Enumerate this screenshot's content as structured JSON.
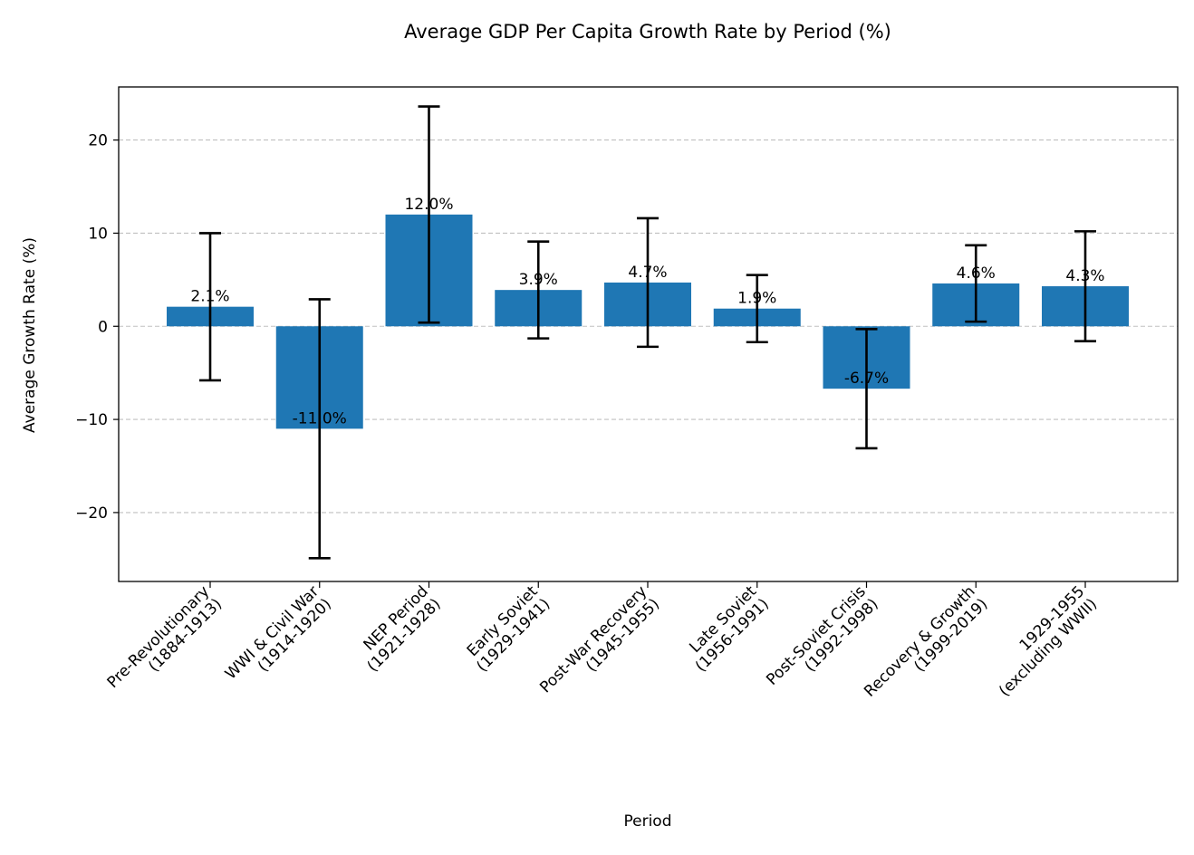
{
  "chart_data": {
    "type": "bar",
    "title": "Average GDP Per Capita Growth Rate by Period (%)",
    "xlabel": "Period",
    "ylabel": "Average Growth Rate (%)",
    "ylim": [
      -27.4,
      25.7
    ],
    "yticks": [
      -20,
      -10,
      0,
      10,
      20
    ],
    "ytick_labels": [
      "−20",
      "−10",
      "0",
      "10",
      "20"
    ],
    "grid": "y-dashed",
    "categories": [
      [
        "Pre-Revolutionary",
        "(1884-1913)"
      ],
      [
        "WWI & Civil War",
        "(1914-1920)"
      ],
      [
        "NEP Period",
        "(1921-1928)"
      ],
      [
        "Early Soviet",
        "(1929-1941)"
      ],
      [
        "Post-War Recovery",
        "(1945-1955)"
      ],
      [
        "Late Soviet",
        "(1956-1991)"
      ],
      [
        "Post-Soviet Crisis",
        "(1992-1998)"
      ],
      [
        "Recovery & Growth",
        "(1999-2019)"
      ],
      [
        "1929-1955",
        "(excluding WWII)"
      ]
    ],
    "values": [
      2.1,
      -11.0,
      12.0,
      3.9,
      4.7,
      1.9,
      -6.7,
      4.6,
      4.3
    ],
    "value_labels": [
      "2.1%",
      "-11.0%",
      "12.0%",
      "3.9%",
      "4.7%",
      "1.9%",
      "-6.7%",
      "4.6%",
      "4.3%"
    ],
    "errors": [
      7.9,
      13.9,
      11.6,
      5.2,
      6.9,
      3.6,
      6.4,
      4.1,
      5.9
    ],
    "bar_color": "#1f77b4",
    "grid_color": "#c0c0c0",
    "error_color": "#000000"
  }
}
